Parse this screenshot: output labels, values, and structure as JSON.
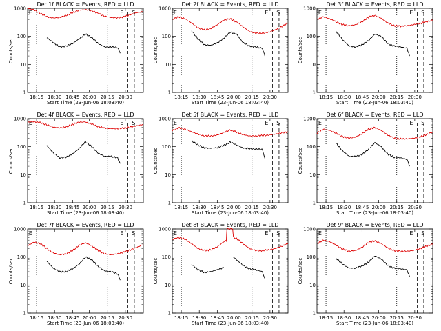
{
  "colors": {
    "events": "#000000",
    "lld": "#dd0000",
    "frame": "#000000",
    "background": "#ffffff"
  },
  "xlabel": "Start Time (23-Jun-06 18:03:40)",
  "ylabel": "Counts/sec",
  "xtick_labels": [
    "18:15",
    "18:30",
    "18:45",
    "20:00",
    "20:15",
    "20:30"
  ],
  "ytick_labels": [
    "1",
    "10",
    "100",
    "1000"
  ],
  "chart_data": [
    {
      "type": "line",
      "title": "Det 1f BLACK = Events, RED = LLD",
      "scale_y": "log",
      "ylim": [
        1,
        1000
      ],
      "top_labels": [
        "E",
        "E",
        "S"
      ],
      "grid": false,
      "legend": "in title",
      "series": [
        {
          "name": "RED = LLD",
          "color": "#dd0000",
          "x": [
            0,
            5,
            10,
            15,
            20,
            25,
            30,
            35,
            40,
            45,
            50,
            55,
            60,
            65,
            70,
            75,
            80,
            85,
            90
          ],
          "y": [
            1000,
            880,
            650,
            500,
            450,
            470,
            560,
            700,
            850,
            900,
            820,
            650,
            520,
            470,
            460,
            500,
            600,
            700,
            760
          ]
        },
        {
          "name": "BLACK = Events",
          "color": "#000000",
          "x": [
            15,
            20,
            25,
            30,
            35,
            40,
            45,
            50,
            55,
            60,
            65,
            70,
            72
          ],
          "y": [
            90,
            60,
            42,
            45,
            55,
            80,
            120,
            90,
            55,
            42,
            42,
            40,
            25
          ]
        }
      ]
    },
    {
      "type": "line",
      "title": "Det 2f BLACK = Events, RED = LLD",
      "scale_y": "log",
      "ylim": [
        1,
        1000
      ],
      "top_labels": [
        "E",
        "E",
        "S"
      ],
      "grid": false,
      "legend": "in title",
      "series": [
        {
          "name": "RED = LLD",
          "color": "#dd0000",
          "x": [
            0,
            5,
            10,
            15,
            20,
            25,
            30,
            35,
            40,
            45,
            50,
            55,
            60,
            65,
            70,
            75,
            80,
            85,
            90
          ],
          "y": [
            400,
            500,
            420,
            300,
            200,
            170,
            190,
            260,
            380,
            420,
            330,
            220,
            150,
            130,
            130,
            140,
            170,
            220,
            300
          ]
        },
        {
          "name": "BLACK = Events",
          "color": "#000000",
          "x": [
            15,
            20,
            25,
            30,
            35,
            40,
            45,
            50,
            55,
            60,
            65,
            70,
            72
          ],
          "y": [
            160,
            80,
            50,
            48,
            58,
            85,
            140,
            120,
            60,
            45,
            42,
            38,
            20
          ]
        }
      ]
    },
    {
      "type": "line",
      "title": "Det 3f BLACK = Events, RED = LLD",
      "scale_y": "log",
      "ylim": [
        1,
        1000
      ],
      "top_labels": [
        "E",
        "E",
        "S"
      ],
      "grid": false,
      "legend": "in title",
      "series": [
        {
          "name": "RED = LLD",
          "color": "#dd0000",
          "x": [
            0,
            5,
            10,
            15,
            20,
            25,
            30,
            35,
            40,
            45,
            50,
            55,
            60,
            65,
            70,
            75,
            80,
            85,
            90
          ],
          "y": [
            400,
            500,
            420,
            330,
            260,
            240,
            260,
            330,
            480,
            560,
            440,
            300,
            240,
            230,
            240,
            260,
            290,
            330,
            380
          ]
        },
        {
          "name": "BLACK = Events",
          "color": "#000000",
          "x": [
            15,
            20,
            25,
            30,
            35,
            40,
            45,
            50,
            55,
            60,
            65,
            70,
            72
          ],
          "y": [
            150,
            75,
            45,
            42,
            50,
            70,
            120,
            100,
            55,
            45,
            42,
            38,
            20
          ]
        }
      ]
    },
    {
      "type": "line",
      "title": "Det 4f BLACK = Events, RED = LLD",
      "scale_y": "log",
      "ylim": [
        1,
        1000
      ],
      "top_labels": [
        "E",
        "E",
        "S"
      ],
      "grid": false,
      "legend": "in title",
      "series": [
        {
          "name": "RED = LLD",
          "color": "#dd0000",
          "x": [
            0,
            5,
            10,
            15,
            20,
            25,
            30,
            35,
            40,
            45,
            50,
            55,
            60,
            65,
            70,
            75,
            80,
            85,
            90
          ],
          "y": [
            750,
            780,
            720,
            600,
            500,
            470,
            500,
            620,
            750,
            760,
            640,
            520,
            460,
            440,
            440,
            460,
            500,
            560,
            620
          ]
        },
        {
          "name": "BLACK = Events",
          "color": "#000000",
          "x": [
            15,
            20,
            25,
            30,
            35,
            40,
            45,
            50,
            55,
            60,
            65,
            70,
            72
          ],
          "y": [
            110,
            60,
            40,
            42,
            55,
            85,
            150,
            100,
            58,
            45,
            45,
            40,
            25
          ]
        }
      ]
    },
    {
      "type": "line",
      "title": "Det 5f BLACK = Events, RED = LLD",
      "scale_y": "log",
      "ylim": [
        1,
        1000
      ],
      "top_labels": [
        "E",
        "E",
        "S"
      ],
      "grid": false,
      "legend": "in title",
      "series": [
        {
          "name": "RED = LLD",
          "color": "#dd0000",
          "x": [
            0,
            5,
            10,
            15,
            20,
            25,
            30,
            35,
            40,
            45,
            50,
            55,
            60,
            65,
            70,
            75,
            80,
            85,
            90
          ],
          "y": [
            380,
            470,
            420,
            340,
            280,
            240,
            240,
            260,
            320,
            400,
            330,
            270,
            240,
            240,
            250,
            260,
            280,
            310,
            340
          ]
        },
        {
          "name": "BLACK = Events",
          "color": "#000000",
          "x": [
            15,
            20,
            25,
            30,
            35,
            40,
            45,
            50,
            55,
            60,
            65,
            70,
            72
          ],
          "y": [
            160,
            115,
            90,
            88,
            92,
            110,
            145,
            115,
            90,
            85,
            82,
            80,
            38
          ]
        }
      ]
    },
    {
      "type": "line",
      "title": "Det 6f BLACK = Events, RED = LLD",
      "scale_y": "log",
      "ylim": [
        1,
        1000
      ],
      "top_labels": [
        "E",
        "E",
        "S"
      ],
      "grid": false,
      "legend": "in title",
      "series": [
        {
          "name": "RED = LLD",
          "color": "#dd0000",
          "x": [
            0,
            5,
            10,
            15,
            20,
            25,
            30,
            35,
            40,
            45,
            50,
            55,
            60,
            65,
            70,
            75,
            80,
            85,
            90
          ],
          "y": [
            300,
            420,
            380,
            300,
            230,
            200,
            220,
            290,
            420,
            480,
            380,
            260,
            200,
            190,
            190,
            200,
            220,
            270,
            330
          ]
        },
        {
          "name": "BLACK = Events",
          "color": "#000000",
          "x": [
            15,
            20,
            25,
            30,
            35,
            40,
            45,
            50,
            55,
            60,
            65,
            70,
            72
          ],
          "y": [
            130,
            70,
            45,
            45,
            52,
            80,
            140,
            100,
            55,
            42,
            40,
            35,
            20
          ]
        }
      ]
    },
    {
      "type": "line",
      "title": "Det 7f BLACK = Events, RED = LLD",
      "scale_y": "log",
      "ylim": [
        1,
        1000
      ],
      "top_labels": [
        "E",
        "E",
        "S"
      ],
      "grid": false,
      "legend": "in title",
      "series": [
        {
          "name": "RED = LLD",
          "color": "#dd0000",
          "x": [
            0,
            5,
            10,
            15,
            20,
            25,
            30,
            35,
            40,
            45,
            50,
            55,
            60,
            65,
            70,
            75,
            80,
            85,
            90
          ],
          "y": [
            250,
            340,
            300,
            200,
            140,
            120,
            130,
            170,
            260,
            320,
            250,
            170,
            130,
            120,
            130,
            150,
            180,
            220,
            280
          ]
        },
        {
          "name": "BLACK = Events",
          "color": "#000000",
          "x": [
            15,
            20,
            25,
            30,
            35,
            40,
            45,
            50,
            55,
            60,
            65,
            70,
            72
          ],
          "y": [
            70,
            40,
            30,
            30,
            38,
            55,
            100,
            80,
            45,
            32,
            30,
            25,
            15
          ]
        }
      ]
    },
    {
      "type": "line",
      "title": "Det 8f BLACK = Events, RED = LLD",
      "scale_y": "log",
      "ylim": [
        1,
        1000
      ],
      "top_labels": [
        "E",
        "E",
        "S"
      ],
      "grid": false,
      "legend": "in title",
      "series": [
        {
          "name": "RED = LLD",
          "color": "#dd0000",
          "x": [
            0,
            5,
            10,
            15,
            20,
            25,
            30,
            35,
            40,
            42,
            42.5,
            47,
            47.5,
            50,
            55,
            60,
            65,
            70,
            75,
            80,
            85,
            90
          ],
          "y": [
            420,
            500,
            430,
            300,
            200,
            170,
            180,
            230,
            350,
            380,
            1000,
            1000,
            500,
            450,
            300,
            200,
            170,
            170,
            180,
            200,
            240,
            300
          ]
        },
        {
          "name": "BLACK = Events",
          "color": "#000000",
          "x": [
            15,
            20,
            25,
            30,
            35,
            40
          ],
          "y": [
            55,
            35,
            28,
            30,
            35,
            42
          ]
        },
        {
          "name": "",
          "color": "#000000",
          "x": [
            47.5,
            50,
            55,
            60,
            65,
            70,
            72
          ],
          "y": [
            100,
            80,
            50,
            38,
            35,
            30,
            17
          ]
        }
      ]
    },
    {
      "type": "line",
      "title": "Det 9f BLACK = Events, RED = LLD",
      "scale_y": "log",
      "ylim": [
        1,
        1000
      ],
      "top_labels": [
        "E",
        "E",
        "S"
      ],
      "grid": false,
      "legend": "in title",
      "series": [
        {
          "name": "RED = LLD",
          "color": "#dd0000",
          "x": [
            0,
            5,
            10,
            15,
            20,
            25,
            30,
            35,
            40,
            45,
            50,
            55,
            60,
            65,
            70,
            75,
            80,
            85,
            90
          ],
          "y": [
            300,
            400,
            350,
            260,
            190,
            160,
            170,
            220,
            330,
            380,
            300,
            210,
            170,
            160,
            160,
            170,
            200,
            240,
            290
          ]
        },
        {
          "name": "BLACK = Events",
          "color": "#000000",
          "x": [
            15,
            20,
            25,
            30,
            35,
            40,
            45,
            50,
            55,
            60,
            65,
            70,
            72
          ],
          "y": [
            90,
            55,
            40,
            40,
            48,
            65,
            110,
            85,
            50,
            40,
            38,
            35,
            20
          ]
        }
      ]
    }
  ]
}
